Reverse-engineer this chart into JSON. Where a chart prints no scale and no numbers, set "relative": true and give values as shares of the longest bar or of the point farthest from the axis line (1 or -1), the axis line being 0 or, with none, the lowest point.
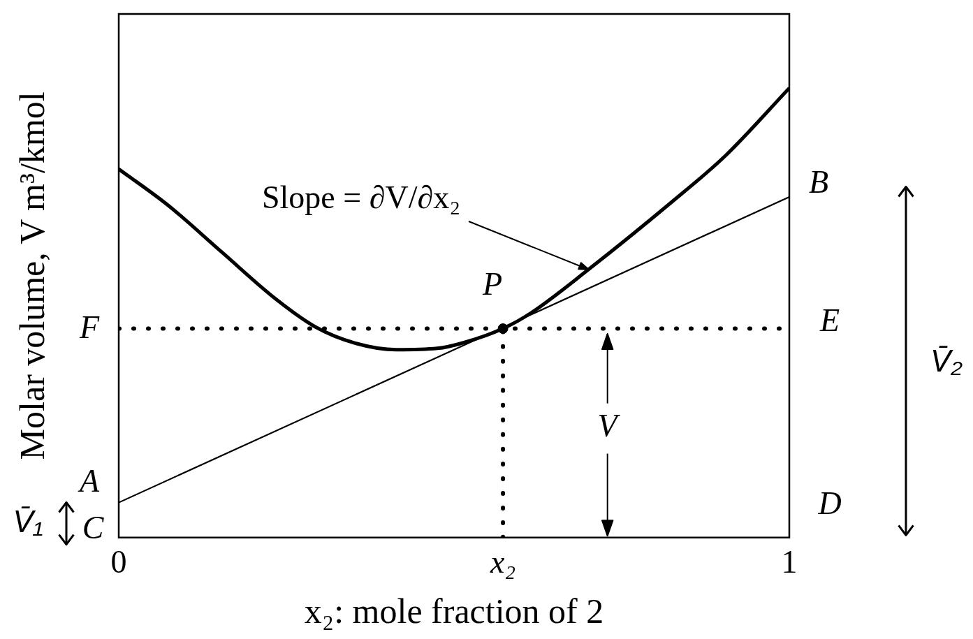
{
  "chart_data": {
    "type": "line",
    "relative": true,
    "xlabel": "x₂: mole fraction of 2",
    "ylabel": "Molar volume, V m³/kmol",
    "xlim": [
      0,
      1
    ],
    "xticks": [
      0,
      {
        "value": 0.573,
        "label": "x₂"
      },
      1
    ],
    "tick_labels": "x",
    "series": [
      {
        "color": "#000000",
        "x": [
          0,
          0.073,
          0.153,
          0.234,
          0.293,
          0.354,
          0.414,
          0.475,
          0.515,
          0.573,
          0.615,
          0.701,
          0.825,
          0.905,
          1
        ],
        "values": [
          0.82,
          0.74,
          0.636,
          0.531,
          0.469,
          0.432,
          0.418,
          0.421,
          0.434,
          0.465,
          0.5,
          0.597,
          0.747,
          0.85,
          1
        ]
      },
      {
        "color": "#000000",
        "x": [
          0,
          1
        ],
        "values": [
          0.078,
          0.758
        ]
      },
      {
        "color": "#000000",
        "line_style": "dotted",
        "x": [
          0,
          1
        ],
        "values": [
          0.465,
          0.465
        ]
      },
      {
        "color": "#000000",
        "line_style": "dotted",
        "x": [
          0.573,
          0.573
        ],
        "values": [
          0,
          0.465
        ]
      },
      {
        "type": "scatter",
        "color": "#000000",
        "marker": "circle",
        "x": [
          0.573
        ],
        "values": [
          0.465
        ]
      }
    ],
    "annotations": [
      "Slope = ∂V/∂x₂",
      {
        "text": "P",
        "x": 0.573,
        "y": 0.465
      },
      {
        "text": "F",
        "x": 0,
        "y": 0.465
      },
      {
        "text": "E",
        "x": 1,
        "y": 0.465
      },
      {
        "text": "A",
        "x": 0,
        "y": 0.078
      },
      {
        "text": "B",
        "x": 1,
        "y": 0.758
      },
      "C",
      "D",
      {
        "text": "V",
        "x": 0.734,
        "y": 0.465
      },
      {
        "text": "V̄₁",
        "x": 0,
        "y": 0.078
      },
      "V̄₂"
    ]
  }
}
